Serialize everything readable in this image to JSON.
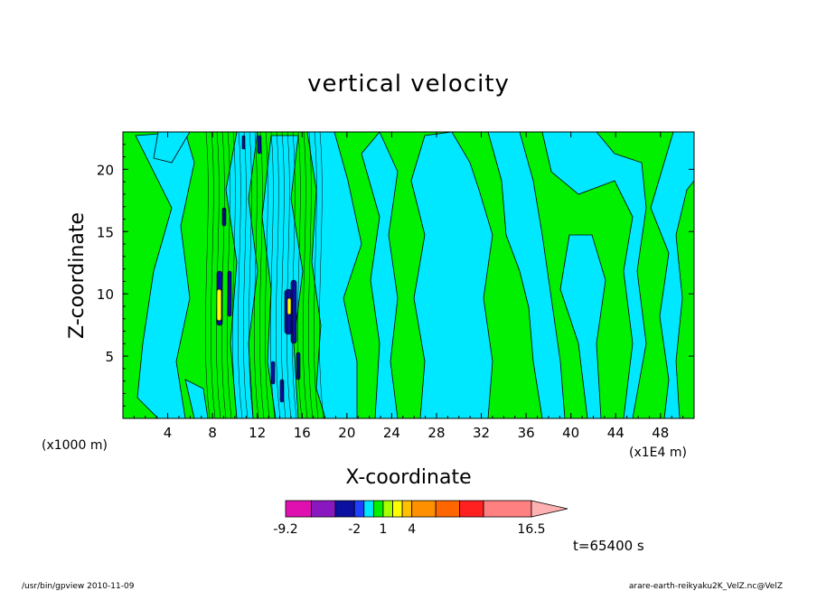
{
  "chart_data": {
    "type": "heatmap",
    "title": "vertical velocity",
    "xlabel": "X-coordinate",
    "ylabel": "Z-coordinate",
    "x_unit_label": "(x1000 m)",
    "x_scale_label": "(x1E4 m)",
    "xlim": [
      0,
      51
    ],
    "ylim": [
      0,
      23
    ],
    "xticks": [
      4,
      8,
      12,
      16,
      20,
      24,
      28,
      32,
      36,
      40,
      44,
      48
    ],
    "xtick_labels": [
      "4",
      "8",
      "12",
      "16",
      "20",
      "24",
      "28",
      "32",
      "36",
      "40",
      "44",
      "48"
    ],
    "yticks": [
      5,
      10,
      15,
      20
    ],
    "ytick_labels": [
      "5",
      "10",
      "15",
      "20"
    ],
    "colorbar": {
      "levels": [
        -9.2,
        -6.5,
        -4,
        -2,
        -1,
        0,
        1,
        2,
        3,
        4,
        6.5,
        9,
        11.5,
        16.5
      ],
      "colors": [
        "#e010b0",
        "#8a18c0",
        "#0c10a0",
        "#2040ff",
        "#00e8ff",
        "#00f000",
        "#a8ff00",
        "#ffff00",
        "#ffc000",
        "#ff9000",
        "#ff6600",
        "#ff2020",
        "#ff8080",
        "#ffb0b0"
      ],
      "labels": [
        "-9.2",
        "-2",
        "1",
        "4",
        "16.5"
      ]
    },
    "colors": {
      "negative_small": "#00e8ff",
      "positive_small": "#00f000",
      "frame": "#000000"
    },
    "time_label": "t=65400 s"
  },
  "footer": {
    "left": "/usr/bin/gpview   2010-11-09",
    "right": "arare-earth-reikyaku2K_VelZ.nc@VelZ"
  }
}
